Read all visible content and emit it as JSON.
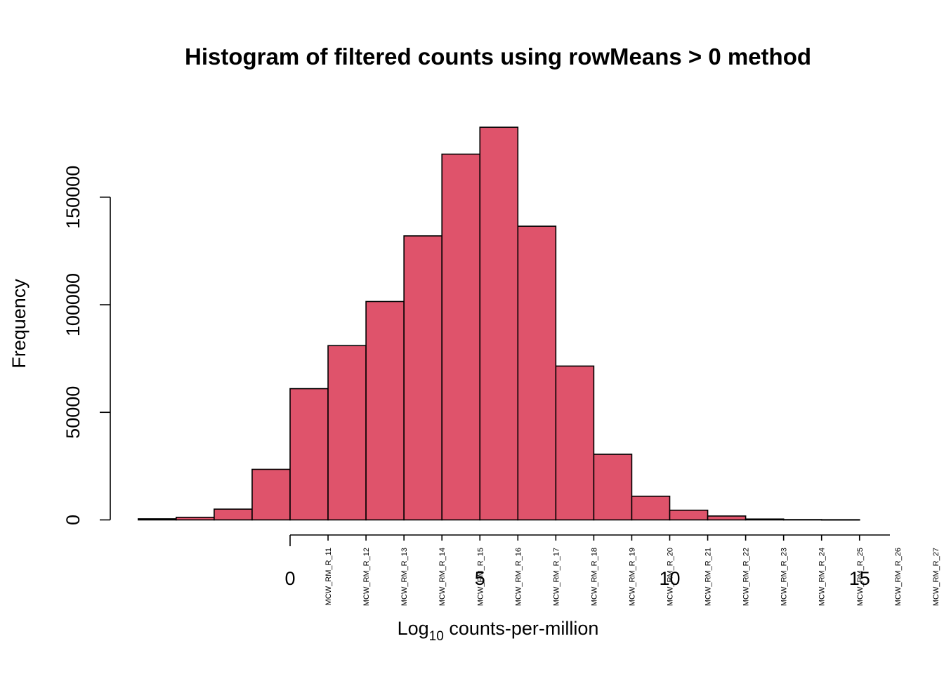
{
  "chart_data": {
    "type": "bar",
    "title": "Histogram of filtered counts using rowMeans > 0 method",
    "xlabel_main": "Log",
    "xlabel_sub": "10",
    "xlabel_rest": " counts-per-million",
    "ylabel": "Frequency",
    "bar_color": "#DF536B",
    "bin_width": 1,
    "bins": [
      {
        "start": -4,
        "value": 500
      },
      {
        "start": -3,
        "value": 1200
      },
      {
        "start": -2,
        "value": 5000
      },
      {
        "start": -1,
        "value": 23500
      },
      {
        "start": 0,
        "value": 61000
      },
      {
        "start": 1,
        "value": 81000
      },
      {
        "start": 2,
        "value": 101500
      },
      {
        "start": 3,
        "value": 132000
      },
      {
        "start": 4,
        "value": 170000
      },
      {
        "start": 5,
        "value": 182500
      },
      {
        "start": 6,
        "value": 136500
      },
      {
        "start": 7,
        "value": 71500
      },
      {
        "start": 8,
        "value": 30500
      },
      {
        "start": 9,
        "value": 11000
      },
      {
        "start": 10,
        "value": 4500
      },
      {
        "start": 11,
        "value": 1800
      },
      {
        "start": 12,
        "value": 400
      },
      {
        "start": 13,
        "value": 150
      },
      {
        "start": 14,
        "value": 100
      }
    ],
    "xlim": [
      -4,
      15
    ],
    "ylim": [
      0,
      182500
    ],
    "x_ticks": [
      0,
      5,
      10,
      15
    ],
    "x_tick_labels": [
      "0",
      "5",
      "10",
      "15"
    ],
    "y_ticks": [
      0,
      50000,
      100000,
      150000
    ],
    "y_tick_labels": [
      "0",
      "50000",
      "100000",
      "150000"
    ],
    "sample_labels": [
      "MCW_RM_R_11",
      "MCW_RM_R_12",
      "MCW_RM_R_13",
      "MCW_RM_R_14",
      "MCW_RM_R_15",
      "MCW_RM_R_16",
      "MCW_RM_R_17",
      "MCW_RM_R_18",
      "MCW_RM_R_19",
      "MCW_RM_R_20",
      "MCW_RM_R_21",
      "MCW_RM_R_22",
      "MCW_RM_R_23",
      "MCW_RM_R_24",
      "MCW_RM_R_25",
      "MCW_RM_R_26",
      "MCW_RM_R_27"
    ],
    "sample_label_start_x": 1,
    "grid": false
  }
}
